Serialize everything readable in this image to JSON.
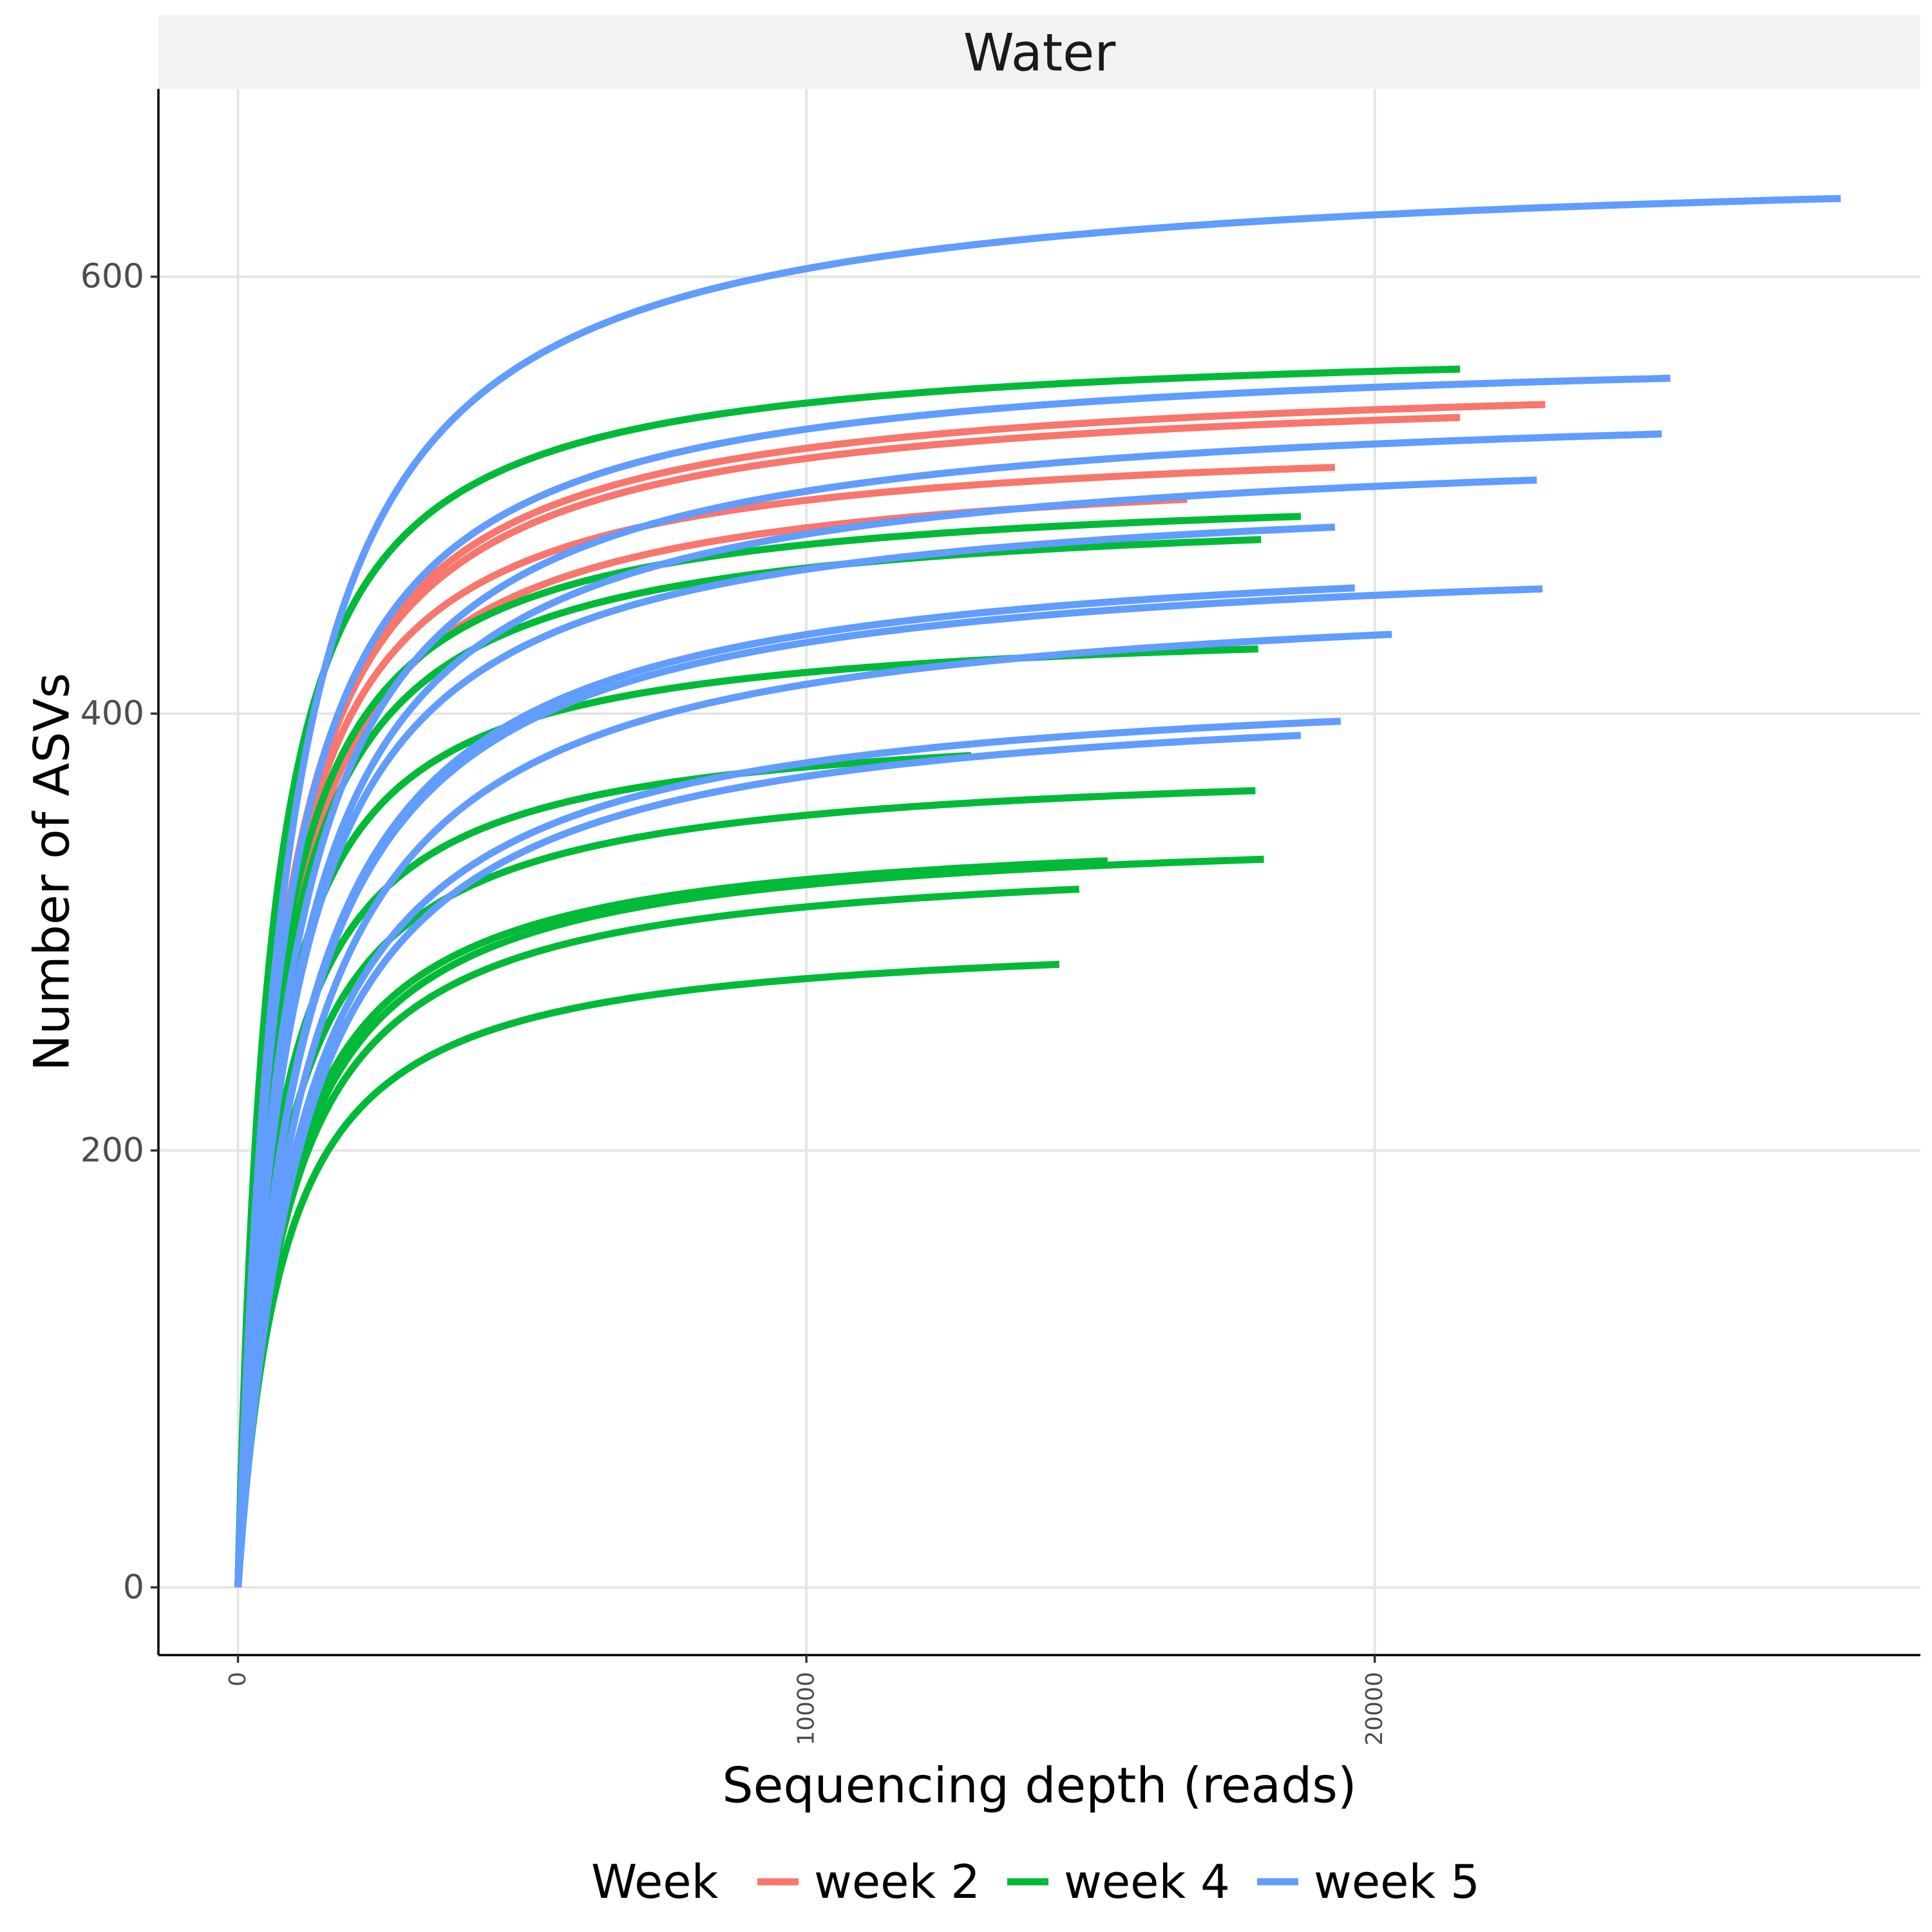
{
  "chart_data": {
    "type": "line",
    "panel_title": "Water",
    "xlabel": "Sequencing depth (reads)",
    "ylabel": "Number of ASVs",
    "xlim": [
      -1400,
      29600
    ],
    "ylim": [
      -31,
      686
    ],
    "x_ticks": [
      0,
      10000,
      20000
    ],
    "x_tick_labels": [
      "0",
      "10000",
      "20000"
    ],
    "y_ticks": [
      0,
      200,
      400,
      600
    ],
    "y_tick_labels": [
      "0",
      "200",
      "400",
      "600"
    ],
    "grid": true,
    "legend": {
      "title": "Week",
      "position": "bottom",
      "entries": [
        {
          "label": "week 2",
          "color": "#F8766D"
        },
        {
          "label": "week 4",
          "color": "#00BA38"
        },
        {
          "label": "week 5",
          "color": "#619CFF"
        }
      ]
    },
    "series": [
      {
        "group": "week 2",
        "color": "#F8766D",
        "curves": [
          {
            "max_depth": 23000,
            "asymptote": 558,
            "half_depth": 700
          },
          {
            "max_depth": 21500,
            "asymptote": 553,
            "half_depth": 700
          },
          {
            "max_depth": 19300,
            "asymptote": 530,
            "half_depth": 650
          },
          {
            "max_depth": 16700,
            "asymptote": 519,
            "half_depth": 700
          }
        ]
      },
      {
        "group": "week 4",
        "color": "#00BA38",
        "curves": [
          {
            "max_depth": 21500,
            "asymptote": 572,
            "half_depth": 550
          },
          {
            "max_depth": 18700,
            "asymptote": 506,
            "half_depth": 600
          },
          {
            "max_depth": 18000,
            "asymptote": 497,
            "half_depth": 650
          },
          {
            "max_depth": 17950,
            "asymptote": 444,
            "half_depth": 600
          },
          {
            "max_depth": 12900,
            "asymptote": 400,
            "half_depth": 650
          },
          {
            "max_depth": 17900,
            "asymptote": 380,
            "half_depth": 750
          },
          {
            "max_depth": 15300,
            "asymptote": 350,
            "half_depth": 800
          },
          {
            "max_depth": 18050,
            "asymptote": 349,
            "half_depth": 850
          },
          {
            "max_depth": 14800,
            "asymptote": 338,
            "half_depth": 850
          },
          {
            "max_depth": 14450,
            "asymptote": 301,
            "half_depth": 800
          }
        ]
      },
      {
        "group": "week 5",
        "color": "#619CFF",
        "curves": [
          {
            "max_depth": 28200,
            "asymptote": 655,
            "half_depth": 850
          },
          {
            "max_depth": 25200,
            "asymptote": 570,
            "half_depth": 750
          },
          {
            "max_depth": 25050,
            "asymptote": 547,
            "half_depth": 900
          },
          {
            "max_depth": 22850,
            "asymptote": 528,
            "half_depth": 950
          },
          {
            "max_depth": 19300,
            "asymptote": 508,
            "half_depth": 900
          },
          {
            "max_depth": 19650,
            "asymptote": 482,
            "half_depth": 1050
          },
          {
            "max_depth": 22950,
            "asymptote": 478,
            "half_depth": 1050
          },
          {
            "max_depth": 20300,
            "asymptote": 461,
            "half_depth": 1150
          },
          {
            "max_depth": 19400,
            "asymptote": 419,
            "half_depth": 1100
          },
          {
            "max_depth": 18700,
            "asymptote": 414,
            "half_depth": 1150
          }
        ]
      }
    ]
  }
}
